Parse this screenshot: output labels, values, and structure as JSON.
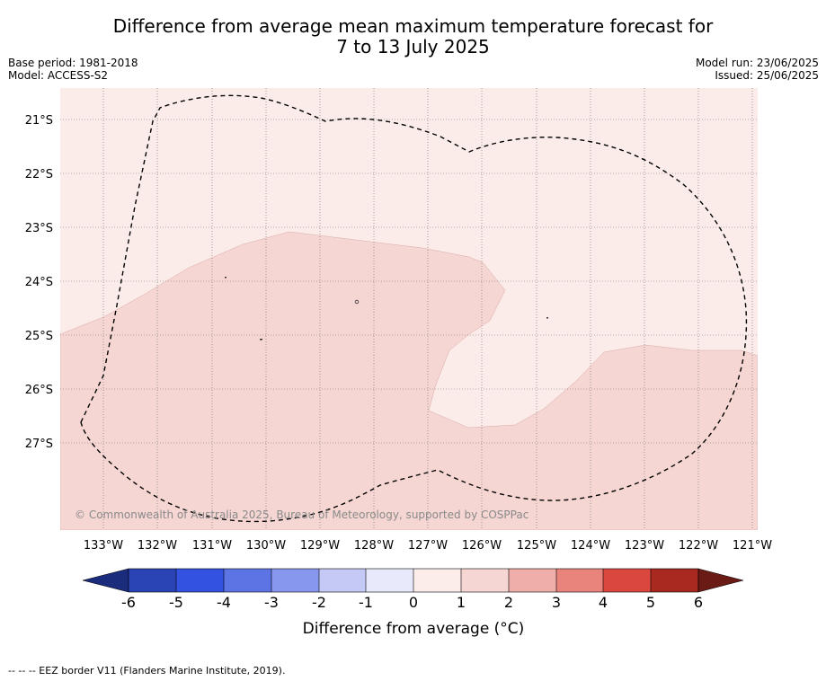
{
  "header": {
    "title_line1": "Difference from average mean maximum temperature forecast for",
    "title_line2": "7 to 13 July 2025",
    "base_period": "Base period: 1981-2018",
    "model": "Model: ACCESS-S2",
    "model_run": "Model run: 23/06/2025",
    "issued": "Issued: 25/06/2025"
  },
  "map": {
    "copyright": "© Commonwealth of Australia 2025, Bureau of Meteorology, supported by COSPPac",
    "lat_labels": [
      "21°S",
      "22°S",
      "23°S",
      "24°S",
      "25°S",
      "26°S",
      "27°S"
    ],
    "lon_labels": [
      "133°W",
      "132°W",
      "131°W",
      "130°W",
      "129°W",
      "128°W",
      "127°W",
      "126°W",
      "125°W",
      "124°W",
      "123°W",
      "122°W",
      "121°W"
    ],
    "fill_colors": {
      "band_0_to_1": "#fbecea",
      "band_1_to_2": "#f5d6d3"
    },
    "legend_eez": "--  --  -- EEZ border V11 (Flanders Marine Institute, 2019)."
  },
  "colorbar": {
    "title": "Difference from average (°C)",
    "tick_labels": [
      "-6",
      "-5",
      "-4",
      "-3",
      "-2",
      "-1",
      "0",
      "1",
      "2",
      "3",
      "4",
      "5",
      "6"
    ],
    "colors": [
      "#1c2c7c",
      "#2a44b5",
      "#3452e0",
      "#5d74e4",
      "#8897ee",
      "#c4c9f6",
      "#e8eafc",
      "#fcecea",
      "#f5d6d3",
      "#efaea9",
      "#e8847c",
      "#d9473f",
      "#a92920",
      "#6a1b15"
    ]
  }
}
